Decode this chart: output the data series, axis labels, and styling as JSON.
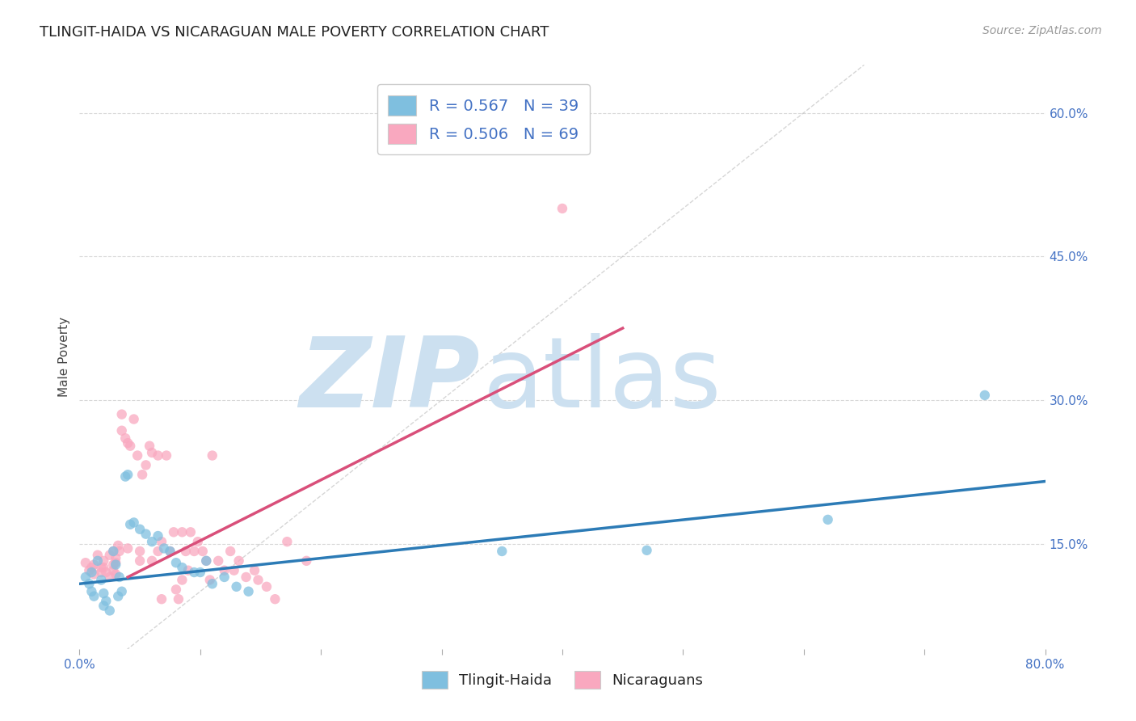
{
  "title": "TLINGIT-HAIDA VS NICARAGUAN MALE POVERTY CORRELATION CHART",
  "source": "Source: ZipAtlas.com",
  "ylabel": "Male Poverty",
  "xlabel": "",
  "xlim": [
    0.0,
    0.8
  ],
  "ylim": [
    0.04,
    0.65
  ],
  "yticks_right": [
    0.15,
    0.3,
    0.45,
    0.6
  ],
  "ytick_labels_right": [
    "15.0%",
    "30.0%",
    "45.0%",
    "60.0%"
  ],
  "background_color": "#ffffff",
  "grid_color": "#d8d8d8",
  "watermark_zip": "ZIP",
  "watermark_atlas": "atlas",
  "watermark_color": "#cce0f0",
  "legend_R_tlingit": "0.567",
  "legend_N_tlingit": "39",
  "legend_R_nicaraguan": "0.506",
  "legend_N_nicaraguan": "69",
  "tlingit_color": "#7fbfdf",
  "nicaraguan_color": "#f9a8bf",
  "tlingit_line_color": "#2c7bb6",
  "nicaraguan_line_color": "#d94f7a",
  "diagonal_color": "#bbbbbb",
  "tlingit_scatter": [
    [
      0.005,
      0.115
    ],
    [
      0.008,
      0.108
    ],
    [
      0.01,
      0.12
    ],
    [
      0.01,
      0.1
    ],
    [
      0.012,
      0.095
    ],
    [
      0.015,
      0.132
    ],
    [
      0.018,
      0.112
    ],
    [
      0.02,
      0.098
    ],
    [
      0.02,
      0.085
    ],
    [
      0.022,
      0.09
    ],
    [
      0.025,
      0.08
    ],
    [
      0.028,
      0.142
    ],
    [
      0.03,
      0.128
    ],
    [
      0.032,
      0.095
    ],
    [
      0.033,
      0.115
    ],
    [
      0.035,
      0.1
    ],
    [
      0.038,
      0.22
    ],
    [
      0.04,
      0.222
    ],
    [
      0.042,
      0.17
    ],
    [
      0.045,
      0.172
    ],
    [
      0.05,
      0.165
    ],
    [
      0.055,
      0.16
    ],
    [
      0.06,
      0.152
    ],
    [
      0.065,
      0.158
    ],
    [
      0.07,
      0.145
    ],
    [
      0.075,
      0.142
    ],
    [
      0.08,
      0.13
    ],
    [
      0.085,
      0.125
    ],
    [
      0.095,
      0.12
    ],
    [
      0.1,
      0.12
    ],
    [
      0.105,
      0.132
    ],
    [
      0.11,
      0.108
    ],
    [
      0.12,
      0.115
    ],
    [
      0.13,
      0.105
    ],
    [
      0.14,
      0.1
    ],
    [
      0.35,
      0.142
    ],
    [
      0.47,
      0.143
    ],
    [
      0.62,
      0.175
    ],
    [
      0.75,
      0.305
    ]
  ],
  "nicaraguan_scatter": [
    [
      0.005,
      0.13
    ],
    [
      0.008,
      0.122
    ],
    [
      0.01,
      0.125
    ],
    [
      0.012,
      0.128
    ],
    [
      0.012,
      0.118
    ],
    [
      0.015,
      0.138
    ],
    [
      0.018,
      0.125
    ],
    [
      0.018,
      0.12
    ],
    [
      0.02,
      0.132
    ],
    [
      0.02,
      0.125
    ],
    [
      0.022,
      0.12
    ],
    [
      0.025,
      0.115
    ],
    [
      0.025,
      0.138
    ],
    [
      0.028,
      0.142
    ],
    [
      0.028,
      0.128
    ],
    [
      0.028,
      0.122
    ],
    [
      0.03,
      0.135
    ],
    [
      0.03,
      0.13
    ],
    [
      0.03,
      0.118
    ],
    [
      0.032,
      0.148
    ],
    [
      0.033,
      0.142
    ],
    [
      0.035,
      0.268
    ],
    [
      0.035,
      0.285
    ],
    [
      0.038,
      0.26
    ],
    [
      0.04,
      0.255
    ],
    [
      0.04,
      0.145
    ],
    [
      0.042,
      0.252
    ],
    [
      0.045,
      0.28
    ],
    [
      0.048,
      0.242
    ],
    [
      0.05,
      0.142
    ],
    [
      0.05,
      0.132
    ],
    [
      0.052,
      0.222
    ],
    [
      0.055,
      0.232
    ],
    [
      0.058,
      0.252
    ],
    [
      0.06,
      0.245
    ],
    [
      0.06,
      0.132
    ],
    [
      0.065,
      0.242
    ],
    [
      0.065,
      0.142
    ],
    [
      0.068,
      0.152
    ],
    [
      0.068,
      0.092
    ],
    [
      0.072,
      0.242
    ],
    [
      0.075,
      0.142
    ],
    [
      0.078,
      0.162
    ],
    [
      0.08,
      0.102
    ],
    [
      0.082,
      0.092
    ],
    [
      0.085,
      0.162
    ],
    [
      0.088,
      0.142
    ],
    [
      0.09,
      0.122
    ],
    [
      0.092,
      0.162
    ],
    [
      0.095,
      0.142
    ],
    [
      0.098,
      0.152
    ],
    [
      0.102,
      0.142
    ],
    [
      0.105,
      0.132
    ],
    [
      0.108,
      0.112
    ],
    [
      0.11,
      0.242
    ],
    [
      0.115,
      0.132
    ],
    [
      0.12,
      0.122
    ],
    [
      0.125,
      0.142
    ],
    [
      0.128,
      0.122
    ],
    [
      0.132,
      0.132
    ],
    [
      0.138,
      0.115
    ],
    [
      0.145,
      0.122
    ],
    [
      0.148,
      0.112
    ],
    [
      0.155,
      0.105
    ],
    [
      0.162,
      0.092
    ],
    [
      0.172,
      0.152
    ],
    [
      0.188,
      0.132
    ],
    [
      0.4,
      0.5
    ],
    [
      0.085,
      0.112
    ]
  ],
  "tlingit_line": [
    [
      0.0,
      0.108
    ],
    [
      0.8,
      0.215
    ]
  ],
  "nicaraguan_line": [
    [
      0.04,
      0.115
    ],
    [
      0.45,
      0.375
    ]
  ],
  "diagonal_line": [
    [
      0.0,
      0.0
    ],
    [
      0.65,
      0.65
    ]
  ]
}
